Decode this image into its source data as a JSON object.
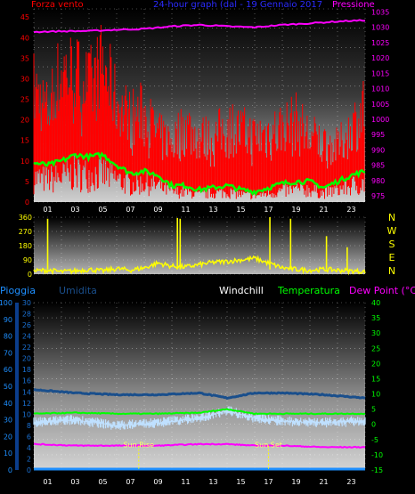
{
  "header": {
    "left_label": "Forza vento",
    "title": "24-hour graph (dal - 19 Gennaio 2017",
    "right_label": "Pressione",
    "compass": [
      "N",
      "W",
      "S",
      "E",
      "N"
    ]
  },
  "legend": {
    "pioggia": "Pioggia",
    "umidita": "Umidita",
    "windchill": "Windchill",
    "temperatura": "Temperatura",
    "dewpoint": "Dew Point (°C)"
  },
  "annotations": {
    "sunrise": "Sun Rise",
    "sunset": "Sun Set"
  },
  "colors": {
    "wind": "#ff0000",
    "pressure": "#ff00ff",
    "wind_avg": "#00ff00",
    "direction": "#ffff00",
    "humidity": "#1a4f8c",
    "temperature": "#00ff00",
    "windchill": "#bfe0ff",
    "dewpoint": "#ff00ff",
    "rain": "#1e8fff"
  },
  "chart_data": [
    {
      "type": "line",
      "title": "Forza vento / Pressione",
      "x_ticks": [
        "01",
        "03",
        "05",
        "07",
        "09",
        "11",
        "13",
        "15",
        "17",
        "19",
        "21",
        "23"
      ],
      "y_left_ticks": [
        "0",
        "5",
        "10",
        "15",
        "20",
        "25",
        "30",
        "35",
        "40",
        "45"
      ],
      "y_right_ticks": [
        "975",
        "980",
        "985",
        "990",
        "995",
        "1000",
        "1005",
        "1010",
        "1015",
        "1020",
        "1025",
        "1030",
        "1035"
      ],
      "ylim_left": [
        0,
        47
      ],
      "ylim_right": [
        973,
        1036
      ],
      "series": [
        {
          "name": "Pressione",
          "axis": "right",
          "x": [
            0,
            2,
            4,
            6,
            8,
            10,
            12,
            14,
            16,
            18,
            20,
            22,
            24
          ],
          "values": [
            1028.5,
            1028.7,
            1028.8,
            1029.2,
            1029.5,
            1030.3,
            1030.8,
            1030.3,
            1030.0,
            1030.8,
            1031.3,
            1031.9,
            1032.3
          ]
        },
        {
          "name": "Forza vento (media)",
          "axis": "left",
          "x": [
            0,
            1,
            2,
            3,
            4,
            5,
            6,
            7,
            8,
            9,
            10,
            11,
            12,
            13,
            14,
            15,
            16,
            17,
            18,
            19,
            20,
            21,
            22,
            23,
            24
          ],
          "values": [
            9.5,
            9,
            10,
            11.5,
            11,
            11.5,
            9,
            7,
            7.5,
            6.5,
            4,
            4,
            3,
            3.5,
            4,
            3,
            2.5,
            3.5,
            4.5,
            5,
            5,
            3.5,
            5,
            6.5,
            7.5
          ]
        },
        {
          "name": "Forza vento (raffica)",
          "axis": "left",
          "x": [
            0,
            1,
            2,
            3,
            4,
            5,
            6,
            7,
            8,
            9,
            10,
            11,
            12,
            13,
            14,
            15,
            16,
            17,
            18,
            19,
            20,
            21,
            22,
            23,
            24
          ],
          "values": [
            38,
            30,
            44,
            42,
            38,
            45,
            33,
            28,
            30,
            22,
            20,
            26,
            22,
            21,
            26,
            24,
            22,
            24,
            25,
            27,
            22,
            20,
            18,
            24,
            33
          ]
        }
      ]
    },
    {
      "type": "scatter",
      "title": "Direzione vento",
      "x_ticks": [
        "01",
        "03",
        "05",
        "07",
        "09",
        "11",
        "13",
        "15",
        "17",
        "19",
        "21",
        "23"
      ],
      "y_ticks": [
        "0",
        "90",
        "180",
        "270",
        "360"
      ],
      "ylim": [
        0,
        360
      ],
      "series": [
        {
          "name": "Direzione",
          "x": [
            0,
            1,
            2,
            3,
            4,
            5,
            6,
            7,
            8,
            9,
            10,
            11,
            12,
            13,
            14,
            15,
            16,
            17,
            18,
            19,
            20,
            21,
            22,
            23,
            24
          ],
          "values": [
            20,
            25,
            15,
            20,
            30,
            20,
            35,
            25,
            40,
            70,
            50,
            45,
            60,
            75,
            80,
            90,
            100,
            70,
            40,
            30,
            25,
            30,
            25,
            20,
            15
          ]
        }
      ]
    },
    {
      "type": "line",
      "title": "Pioggia / Umidita / Temperatura",
      "x_ticks": [
        "01",
        "03",
        "05",
        "07",
        "09",
        "11",
        "13",
        "15",
        "17",
        "19",
        "21",
        "23"
      ],
      "y_left_ticks": [
        "0",
        "10",
        "20",
        "30",
        "40",
        "50",
        "60",
        "70",
        "80",
        "90",
        "100"
      ],
      "y_mid_ticks": [
        "0",
        "2",
        "4",
        "6",
        "8",
        "10",
        "12",
        "14",
        "16",
        "18",
        "20",
        "22",
        "24",
        "26",
        "28",
        "30"
      ],
      "y_right_ticks": [
        "-15",
        "-10",
        "-5",
        "0",
        "5",
        "10",
        "15",
        "20",
        "25",
        "30",
        "35",
        "40"
      ],
      "ylim_temp": [
        -15,
        40
      ],
      "series": [
        {
          "name": "Umidita",
          "axis": "left",
          "x": [
            0,
            3,
            6,
            9,
            12,
            14,
            16,
            18,
            21,
            24
          ],
          "values": [
            48,
            46,
            45,
            45,
            46,
            43,
            46,
            46,
            45,
            43
          ]
        },
        {
          "name": "Temperatura",
          "axis": "right",
          "x": [
            0,
            3,
            6,
            9,
            12,
            14,
            16,
            18,
            21,
            24
          ],
          "values": [
            3.5,
            3.8,
            3.5,
            3.5,
            3.8,
            5,
            3.5,
            3.5,
            3.5,
            3.5
          ]
        },
        {
          "name": "Windchill",
          "axis": "right",
          "x": [
            0,
            3,
            6,
            9,
            12,
            14,
            16,
            18,
            21,
            24
          ],
          "values": [
            0.5,
            1.5,
            -0.5,
            0.5,
            2,
            4.5,
            2,
            1,
            0.5,
            1
          ]
        },
        {
          "name": "Dew Point",
          "axis": "right",
          "x": [
            0,
            3,
            6,
            9,
            12,
            14,
            16,
            18,
            21,
            24
          ],
          "values": [
            -6.5,
            -7,
            -7,
            -7,
            -6.5,
            -6.5,
            -7,
            -7,
            -7.5,
            -7.5
          ]
        },
        {
          "name": "Pioggia",
          "axis": "left",
          "x": [
            0,
            24
          ],
          "values": [
            0,
            0
          ]
        }
      ]
    }
  ]
}
